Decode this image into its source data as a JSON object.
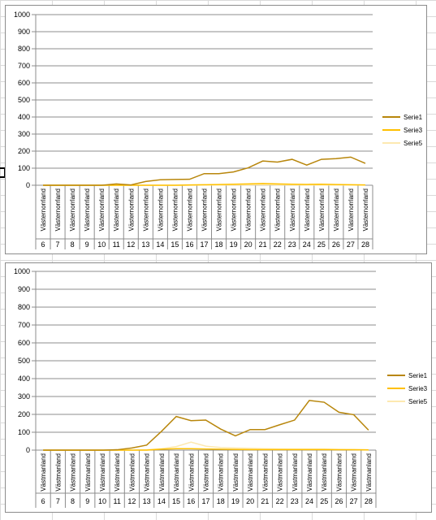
{
  "chart_data": [
    {
      "type": "line",
      "title": "",
      "ylim": [
        0,
        1000
      ],
      "yticks": [
        "0",
        "100",
        "200",
        "300",
        "400",
        "500",
        "600",
        "700",
        "800",
        "900",
        "1000"
      ],
      "grid": true,
      "legend_position": "right",
      "categories": [
        "6",
        "7",
        "8",
        "9",
        "10",
        "11",
        "12",
        "13",
        "14",
        "15",
        "16",
        "17",
        "18",
        "19",
        "20",
        "21",
        "22",
        "23",
        "24",
        "25",
        "26",
        "27",
        "28"
      ],
      "group_label": "Västernorrland",
      "series": [
        {
          "name": "Serie1",
          "color": "#b8860b",
          "values": [
            0,
            0,
            0,
            0,
            0,
            8,
            2,
            22,
            32,
            34,
            35,
            68,
            68,
            78,
            102,
            142,
            136,
            152,
            118,
            152,
            156,
            165,
            128
          ]
        },
        {
          "name": "Serie3",
          "color": "#ffc000",
          "values": [
            0,
            0,
            0,
            0,
            0,
            0,
            0,
            0,
            0,
            0,
            2,
            3,
            4,
            6,
            8,
            10,
            8,
            6,
            5,
            6,
            4,
            3,
            2
          ]
        },
        {
          "name": "Serie5",
          "color": "#fde9b0",
          "values": [
            0,
            0,
            0,
            0,
            0,
            0,
            0,
            0,
            0,
            0,
            0,
            1,
            1,
            2,
            2,
            3,
            2,
            2,
            1,
            2,
            1,
            1,
            1
          ]
        }
      ]
    },
    {
      "type": "line",
      "title": "",
      "ylim": [
        0,
        1000
      ],
      "yticks": [
        "0",
        "100",
        "200",
        "300",
        "400",
        "500",
        "600",
        "700",
        "800",
        "900",
        "1000"
      ],
      "grid": true,
      "legend_position": "right",
      "categories": [
        "6",
        "7",
        "8",
        "9",
        "10",
        "11",
        "12",
        "13",
        "14",
        "15",
        "16",
        "17",
        "18",
        "19",
        "20",
        "21",
        "22",
        "23",
        "24",
        "25",
        "26",
        "27",
        "28"
      ],
      "group_label": "Västmanland",
      "series": [
        {
          "name": "Serie1",
          "color": "#b8860b",
          "values": [
            0,
            0,
            0,
            0,
            0,
            2,
            12,
            28,
            105,
            188,
            165,
            168,
            118,
            80,
            115,
            115,
            142,
            168,
            278,
            268,
            212,
            198,
            112
          ]
        },
        {
          "name": "Serie3",
          "color": "#ffc000",
          "values": [
            0,
            0,
            0,
            0,
            0,
            0,
            0,
            0,
            5,
            8,
            8,
            6,
            5,
            4,
            3,
            3,
            3,
            3,
            3,
            3,
            2,
            2,
            1
          ]
        },
        {
          "name": "Serie5",
          "color": "#fde9b0",
          "values": [
            0,
            0,
            0,
            0,
            0,
            0,
            0,
            2,
            8,
            20,
            45,
            22,
            15,
            12,
            10,
            8,
            7,
            6,
            6,
            6,
            4,
            3,
            2
          ]
        }
      ]
    }
  ]
}
